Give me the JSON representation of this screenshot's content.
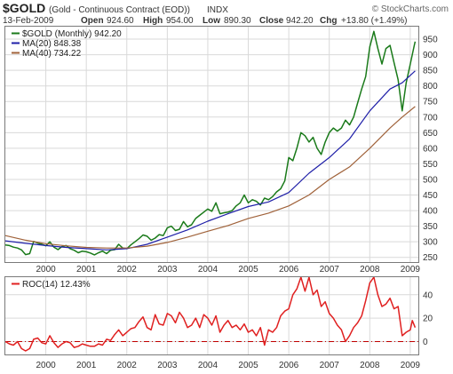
{
  "header": {
    "symbol": "$GOLD",
    "description": "(Gold - Continuous Contract (EOD))",
    "exchange": "INDX",
    "date": "13-Feb-2009",
    "open_label": "Open",
    "open": "924.60",
    "high_label": "High",
    "high": "954.00",
    "low_label": "Low",
    "low": "890.30",
    "close_label": "Close",
    "close": "942.20",
    "chg_label": "Chg",
    "chg": "+13.80 (+1.49%)",
    "watermark": "© StockCharts.com"
  },
  "colors": {
    "price": "#1a7a1a",
    "ma20": "#1f1fa8",
    "ma40": "#a0623a",
    "roc": "#e02020",
    "zero_line": "#c00000"
  },
  "chart_data": [
    {
      "type": "line",
      "title": "",
      "xlabel": "",
      "ylabel": "",
      "x_ticks": [
        "2000",
        "2001",
        "2002",
        "2003",
        "2004",
        "2005",
        "2006",
        "2007",
        "2008",
        "2009"
      ],
      "y_ticks": [
        250,
        300,
        350,
        400,
        450,
        500,
        550,
        600,
        650,
        700,
        750,
        800,
        850,
        900,
        950
      ],
      "xlim": [
        1999.0,
        2009.2
      ],
      "ylim": [
        235,
        990
      ],
      "legend_position": "top-left",
      "grid": true,
      "series": [
        {
          "name": "$GOLD (Monthly) 942.20",
          "color_key": "price",
          "points": [
            [
              1999.0,
              290
            ],
            [
              1999.1,
              288
            ],
            [
              1999.2,
              283
            ],
            [
              1999.3,
              280
            ],
            [
              1999.4,
              274
            ],
            [
              1999.5,
              259
            ],
            [
              1999.6,
              262
            ],
            [
              1999.7,
              301
            ],
            [
              1999.8,
              296
            ],
            [
              1999.9,
              292
            ],
            [
              2000.0,
              287
            ],
            [
              2000.1,
              300
            ],
            [
              2000.2,
              283
            ],
            [
              2000.3,
              275
            ],
            [
              2000.4,
              285
            ],
            [
              2000.5,
              288
            ],
            [
              2000.6,
              278
            ],
            [
              2000.7,
              273
            ],
            [
              2000.8,
              265
            ],
            [
              2000.9,
              270
            ],
            [
              2001.0,
              268
            ],
            [
              2001.1,
              264
            ],
            [
              2001.2,
              258
            ],
            [
              2001.3,
              265
            ],
            [
              2001.4,
              270
            ],
            [
              2001.5,
              262
            ],
            [
              2001.6,
              273
            ],
            [
              2001.7,
              275
            ],
            [
              2001.8,
              292
            ],
            [
              2001.9,
              280
            ],
            [
              2002.0,
              278
            ],
            [
              2002.1,
              290
            ],
            [
              2002.2,
              300
            ],
            [
              2002.3,
              310
            ],
            [
              2002.4,
              322
            ],
            [
              2002.5,
              318
            ],
            [
              2002.6,
              305
            ],
            [
              2002.7,
              312
            ],
            [
              2002.8,
              323
            ],
            [
              2002.9,
              320
            ],
            [
              2003.0,
              345
            ],
            [
              2003.1,
              350
            ],
            [
              2003.2,
              336
            ],
            [
              2003.3,
              340
            ],
            [
              2003.4,
              365
            ],
            [
              2003.5,
              348
            ],
            [
              2003.6,
              355
            ],
            [
              2003.7,
              375
            ],
            [
              2003.8,
              385
            ],
            [
              2003.9,
              395
            ],
            [
              2004.0,
              405
            ],
            [
              2004.1,
              398
            ],
            [
              2004.2,
              425
            ],
            [
              2004.3,
              390
            ],
            [
              2004.4,
              393
            ],
            [
              2004.5,
              395
            ],
            [
              2004.6,
              400
            ],
            [
              2004.7,
              415
            ],
            [
              2004.8,
              425
            ],
            [
              2004.9,
              450
            ],
            [
              2005.0,
              425
            ],
            [
              2005.1,
              435
            ],
            [
              2005.2,
              430
            ],
            [
              2005.3,
              418
            ],
            [
              2005.4,
              440
            ],
            [
              2005.5,
              435
            ],
            [
              2005.6,
              445
            ],
            [
              2005.7,
              460
            ],
            [
              2005.8,
              470
            ],
            [
              2005.9,
              495
            ],
            [
              2006.0,
              570
            ],
            [
              2006.1,
              560
            ],
            [
              2006.2,
              600
            ],
            [
              2006.3,
              650
            ],
            [
              2006.4,
              640
            ],
            [
              2006.5,
              620
            ],
            [
              2006.6,
              635
            ],
            [
              2006.7,
              600
            ],
            [
              2006.8,
              580
            ],
            [
              2006.9,
              620
            ],
            [
              2007.0,
              650
            ],
            [
              2007.1,
              665
            ],
            [
              2007.2,
              655
            ],
            [
              2007.3,
              665
            ],
            [
              2007.4,
              690
            ],
            [
              2007.5,
              675
            ],
            [
              2007.6,
              700
            ],
            [
              2007.7,
              745
            ],
            [
              2007.8,
              790
            ],
            [
              2007.9,
              830
            ],
            [
              2008.0,
              925
            ],
            [
              2008.1,
              975
            ],
            [
              2008.2,
              920
            ],
            [
              2008.3,
              870
            ],
            [
              2008.4,
              920
            ],
            [
              2008.5,
              930
            ],
            [
              2008.6,
              875
            ],
            [
              2008.7,
              820
            ],
            [
              2008.8,
              720
            ],
            [
              2008.9,
              810
            ],
            [
              2009.0,
              870
            ],
            [
              2009.1,
              930
            ],
            [
              2009.12,
              942
            ]
          ]
        },
        {
          "name": "MA(20) 848.38",
          "color_key": "ma20",
          "points": [
            [
              1999.0,
              303
            ],
            [
              1999.5,
              295
            ],
            [
              2000.0,
              288
            ],
            [
              2000.5,
              282
            ],
            [
              2001.0,
              278
            ],
            [
              2001.5,
              274
            ],
            [
              2002.0,
              278
            ],
            [
              2002.5,
              292
            ],
            [
              2003.0,
              315
            ],
            [
              2003.5,
              338
            ],
            [
              2004.0,
              366
            ],
            [
              2004.5,
              390
            ],
            [
              2005.0,
              413
            ],
            [
              2005.5,
              428
            ],
            [
              2006.0,
              458
            ],
            [
              2006.5,
              520
            ],
            [
              2007.0,
              570
            ],
            [
              2007.5,
              630
            ],
            [
              2008.0,
              720
            ],
            [
              2008.5,
              790
            ],
            [
              2008.8,
              810
            ],
            [
              2009.12,
              848
            ]
          ]
        },
        {
          "name": "MA(40) 734.22",
          "color_key": "ma40",
          "points": [
            [
              1999.0,
              320
            ],
            [
              1999.5,
              305
            ],
            [
              2000.0,
              294
            ],
            [
              2000.5,
              287
            ],
            [
              2001.0,
              282
            ],
            [
              2001.5,
              280
            ],
            [
              2002.0,
              280
            ],
            [
              2002.5,
              286
            ],
            [
              2003.0,
              298
            ],
            [
              2003.5,
              315
            ],
            [
              2004.0,
              334
            ],
            [
              2004.5,
              352
            ],
            [
              2005.0,
              375
            ],
            [
              2005.5,
              392
            ],
            [
              2006.0,
              415
            ],
            [
              2006.5,
              450
            ],
            [
              2007.0,
              500
            ],
            [
              2007.5,
              540
            ],
            [
              2008.0,
              600
            ],
            [
              2008.5,
              665
            ],
            [
              2008.8,
              700
            ],
            [
              2009.12,
              734
            ]
          ]
        }
      ]
    },
    {
      "type": "line",
      "title": "",
      "xlabel": "",
      "ylabel": "",
      "x_ticks": [
        "2000",
        "2001",
        "2002",
        "2003",
        "2004",
        "2005",
        "2006",
        "2007",
        "2008",
        "2009"
      ],
      "y_ticks": [
        0,
        20,
        40
      ],
      "xlim": [
        1999.0,
        2009.2
      ],
      "ylim": [
        -11,
        55
      ],
      "reference_line": 0,
      "legend_position": "top-left",
      "grid": true,
      "series": [
        {
          "name": "ROC(14) 12.43%",
          "color_key": "roc",
          "points": [
            [
              1999.0,
              0
            ],
            [
              1999.1,
              -2
            ],
            [
              1999.2,
              -3
            ],
            [
              1999.3,
              0
            ],
            [
              1999.4,
              -6
            ],
            [
              1999.5,
              -8
            ],
            [
              1999.6,
              -6
            ],
            [
              1999.7,
              2
            ],
            [
              1999.8,
              3
            ],
            [
              1999.9,
              -1
            ],
            [
              2000.0,
              -2
            ],
            [
              2000.1,
              5
            ],
            [
              2000.2,
              -1
            ],
            [
              2000.3,
              -5
            ],
            [
              2000.4,
              -2
            ],
            [
              2000.5,
              0
            ],
            [
              2000.6,
              -1
            ],
            [
              2000.7,
              -5
            ],
            [
              2000.8,
              -4
            ],
            [
              2000.9,
              -2
            ],
            [
              2001.0,
              -3
            ],
            [
              2001.1,
              -4
            ],
            [
              2001.2,
              -4
            ],
            [
              2001.3,
              -2
            ],
            [
              2001.4,
              -3
            ],
            [
              2001.5,
              2
            ],
            [
              2001.6,
              1
            ],
            [
              2001.7,
              6
            ],
            [
              2001.8,
              10
            ],
            [
              2001.9,
              5
            ],
            [
              2002.0,
              8
            ],
            [
              2002.1,
              11
            ],
            [
              2002.2,
              12
            ],
            [
              2002.3,
              17
            ],
            [
              2002.4,
              21
            ],
            [
              2002.5,
              12
            ],
            [
              2002.6,
              10
            ],
            [
              2002.7,
              23
            ],
            [
              2002.8,
              15
            ],
            [
              2002.9,
              14
            ],
            [
              2003.0,
              24
            ],
            [
              2003.1,
              22
            ],
            [
              2003.2,
              16
            ],
            [
              2003.3,
              25
            ],
            [
              2003.4,
              20
            ],
            [
              2003.5,
              12
            ],
            [
              2003.6,
              14
            ],
            [
              2003.7,
              20
            ],
            [
              2003.8,
              12
            ],
            [
              2003.9,
              23
            ],
            [
              2004.0,
              20
            ],
            [
              2004.1,
              14
            ],
            [
              2004.2,
              22
            ],
            [
              2004.3,
              8
            ],
            [
              2004.4,
              14
            ],
            [
              2004.5,
              18
            ],
            [
              2004.6,
              12
            ],
            [
              2004.7,
              14
            ],
            [
              2004.8,
              10
            ],
            [
              2004.9,
              15
            ],
            [
              2005.0,
              8
            ],
            [
              2005.1,
              10
            ],
            [
              2005.2,
              5
            ],
            [
              2005.3,
              12
            ],
            [
              2005.4,
              -3
            ],
            [
              2005.5,
              10
            ],
            [
              2005.6,
              8
            ],
            [
              2005.7,
              12
            ],
            [
              2005.8,
              22
            ],
            [
              2005.9,
              26
            ],
            [
              2006.0,
              28
            ],
            [
              2006.1,
              40
            ],
            [
              2006.2,
              45
            ],
            [
              2006.3,
              55
            ],
            [
              2006.4,
              43
            ],
            [
              2006.5,
              55
            ],
            [
              2006.6,
              40
            ],
            [
              2006.7,
              44
            ],
            [
              2006.8,
              30
            ],
            [
              2006.9,
              34
            ],
            [
              2007.0,
              24
            ],
            [
              2007.1,
              20
            ],
            [
              2007.2,
              14
            ],
            [
              2007.3,
              10
            ],
            [
              2007.4,
              0
            ],
            [
              2007.5,
              5
            ],
            [
              2007.6,
              12
            ],
            [
              2007.7,
              16
            ],
            [
              2007.8,
              22
            ],
            [
              2007.9,
              35
            ],
            [
              2008.0,
              50
            ],
            [
              2008.1,
              55
            ],
            [
              2008.2,
              40
            ],
            [
              2008.3,
              30
            ],
            [
              2008.4,
              32
            ],
            [
              2008.5,
              37
            ],
            [
              2008.6,
              28
            ],
            [
              2008.7,
              30
            ],
            [
              2008.8,
              5
            ],
            [
              2008.9,
              8
            ],
            [
              2009.0,
              10
            ],
            [
              2009.05,
              18
            ],
            [
              2009.12,
              12
            ]
          ]
        }
      ]
    }
  ]
}
